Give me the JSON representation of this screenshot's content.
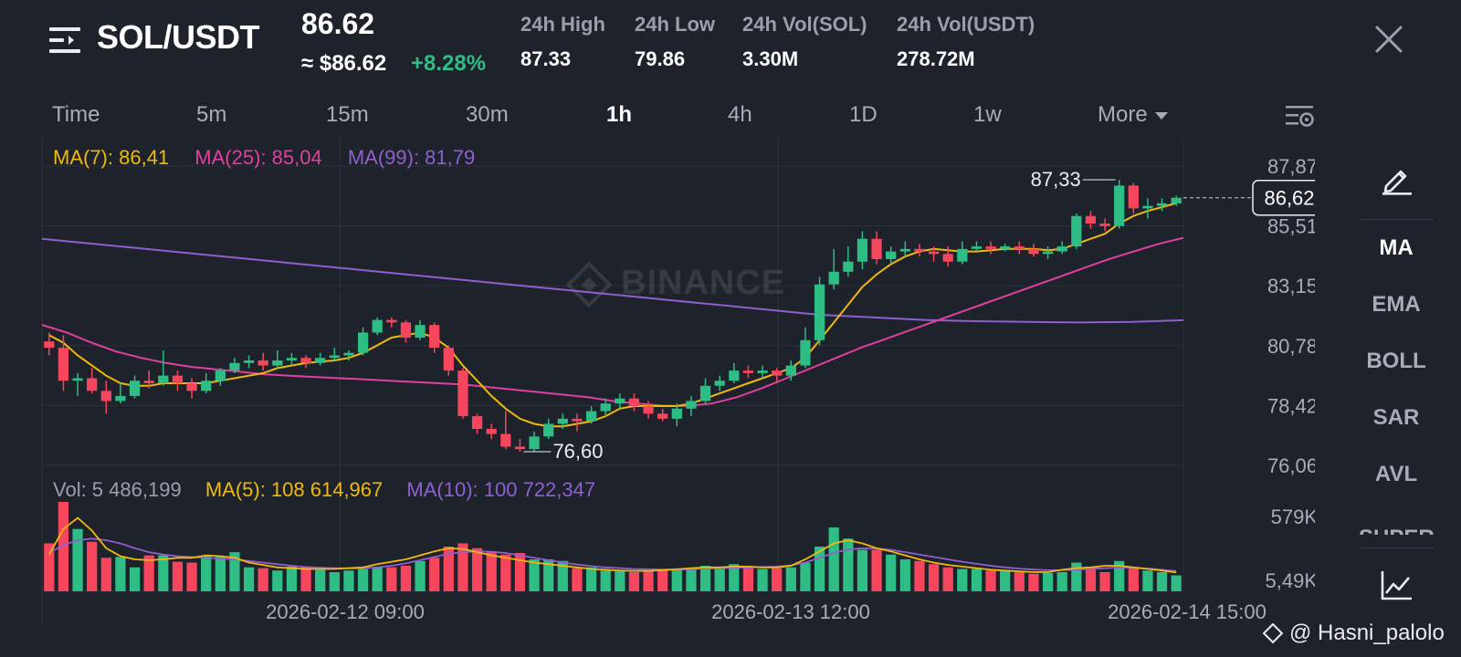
{
  "header": {
    "pair": "SOL/USDT",
    "last_price": "86.62",
    "approx_price": "≈ $86.62",
    "change_pct": "+8.28%",
    "stats": [
      {
        "label": "24h High",
        "value": "87.33"
      },
      {
        "label": "24h Low",
        "value": "79.86"
      },
      {
        "label": "24h Vol(SOL)",
        "value": "3.30M"
      },
      {
        "label": "24h Vol(USDT)",
        "value": "278.72M"
      }
    ]
  },
  "timeframes": [
    "Time",
    "5m",
    "15m",
    "30m",
    "1h",
    "4h",
    "1D",
    "1w",
    "More"
  ],
  "active_timeframe": "1h",
  "ma_legend": {
    "ma7": "MA(7): 86,41",
    "ma25": "MA(25): 85,04",
    "ma99": "MA(99): 81,79"
  },
  "vol_legend": {
    "vol": "Vol: 5 486,199",
    "ma5": "MA(5): 108 614,967",
    "ma10": "MA(10): 100 722,347"
  },
  "watermark_logo": "BINANCE",
  "sidebar": [
    "MA",
    "EMA",
    "BOLL",
    "SAR",
    "AVL",
    "SUPER"
  ],
  "sidebar_active": "MA",
  "footer_credit": "@ Hasni_palolo",
  "colors": {
    "up": "#2ebd85",
    "down": "#f6465d",
    "ma7": "#f0b90b",
    "ma25": "#e040a0",
    "ma99": "#8f5fd0",
    "bg": "#1e222b"
  },
  "chart_data": {
    "type": "candlestick",
    "price_axis_ticks": [
      "87,87",
      "85,51",
      "83,15",
      "80,78",
      "78,42",
      "76,06"
    ],
    "price_range": [
      76.06,
      87.87
    ],
    "volume_axis_ticks": [
      "579K",
      "5,49K"
    ],
    "x_tick_labels": [
      "2026-02-12 09:00",
      "2026-02-13 12:00",
      "2026-02-14 15:00"
    ],
    "high_label": "87,33",
    "low_label": "76,60",
    "current_price_label": "86,62",
    "candles": [
      [
        80.95,
        80.7,
        81.3,
        80.4
      ],
      [
        80.7,
        79.4,
        81.2,
        79.0
      ],
      [
        79.4,
        79.5,
        79.7,
        78.8
      ],
      [
        79.5,
        79.0,
        79.9,
        78.9
      ],
      [
        79.0,
        78.6,
        79.4,
        78.1
      ],
      [
        78.6,
        78.8,
        79.3,
        78.5
      ],
      [
        78.8,
        79.4,
        79.6,
        78.7
      ],
      [
        79.4,
        79.3,
        79.8,
        79.1
      ],
      [
        79.3,
        79.6,
        80.6,
        79.2
      ],
      [
        79.6,
        79.3,
        79.8,
        79.0
      ],
      [
        79.3,
        79.0,
        79.5,
        78.7
      ],
      [
        79.0,
        79.4,
        79.7,
        78.9
      ],
      [
        79.4,
        79.8,
        79.9,
        79.2
      ],
      [
        79.8,
        80.1,
        80.3,
        79.7
      ],
      [
        80.1,
        80.2,
        80.4,
        79.9
      ],
      [
        80.2,
        80.0,
        80.5,
        79.8
      ],
      [
        80.0,
        80.2,
        80.6,
        79.9
      ],
      [
        80.2,
        80.3,
        80.5,
        80.0
      ],
      [
        80.3,
        80.1,
        80.4,
        79.9
      ],
      [
        80.1,
        80.3,
        80.5,
        80.0
      ],
      [
        80.3,
        80.4,
        80.7,
        80.2
      ],
      [
        80.4,
        80.5,
        80.6,
        80.2
      ],
      [
        80.5,
        81.3,
        81.5,
        80.4
      ],
      [
        81.3,
        81.8,
        81.9,
        81.2
      ],
      [
        81.8,
        81.7,
        81.9,
        81.5
      ],
      [
        81.7,
        81.1,
        81.8,
        80.9
      ],
      [
        81.1,
        81.6,
        81.8,
        81.0
      ],
      [
        81.6,
        80.7,
        81.7,
        80.5
      ],
      [
        80.7,
        79.8,
        80.8,
        79.6
      ],
      [
        79.8,
        78.0,
        79.9,
        77.9
      ],
      [
        78.0,
        77.5,
        78.1,
        77.3
      ],
      [
        77.5,
        77.3,
        77.7,
        77.1
      ],
      [
        77.3,
        76.8,
        78.2,
        76.7
      ],
      [
        76.8,
        76.7,
        77.1,
        76.6
      ],
      [
        76.7,
        77.2,
        77.4,
        76.6
      ],
      [
        77.2,
        77.7,
        77.9,
        77.1
      ],
      [
        77.7,
        77.9,
        78.1,
        77.5
      ],
      [
        77.9,
        77.8,
        78.1,
        77.4
      ],
      [
        77.8,
        78.2,
        78.4,
        77.7
      ],
      [
        78.2,
        78.5,
        78.7,
        78.0
      ],
      [
        78.5,
        78.7,
        78.9,
        78.3
      ],
      [
        78.7,
        78.4,
        78.9,
        78.2
      ],
      [
        78.4,
        78.1,
        78.6,
        77.9
      ],
      [
        78.1,
        77.9,
        78.3,
        77.8
      ],
      [
        77.9,
        78.3,
        78.5,
        77.6
      ],
      [
        78.3,
        78.6,
        78.8,
        78.0
      ],
      [
        78.6,
        79.2,
        79.5,
        78.5
      ],
      [
        79.2,
        79.4,
        79.6,
        79.0
      ],
      [
        79.4,
        79.8,
        80.1,
        79.3
      ],
      [
        79.8,
        79.7,
        80.0,
        79.5
      ],
      [
        79.7,
        79.8,
        80.0,
        79.5
      ],
      [
        79.8,
        79.6,
        79.9,
        79.3
      ],
      [
        79.6,
        80.0,
        80.2,
        79.4
      ],
      [
        80.0,
        81.0,
        81.5,
        79.9
      ],
      [
        81.0,
        83.2,
        83.5,
        80.8
      ],
      [
        83.2,
        83.7,
        84.6,
        83.0
      ],
      [
        83.7,
        84.1,
        84.7,
        83.5
      ],
      [
        84.1,
        85.0,
        85.3,
        83.8
      ],
      [
        85.0,
        84.2,
        85.3,
        84.0
      ],
      [
        84.2,
        84.5,
        84.7,
        84.0
      ],
      [
        84.5,
        84.6,
        84.9,
        84.3
      ],
      [
        84.6,
        84.5,
        84.8,
        84.3
      ],
      [
        84.5,
        84.4,
        84.7,
        84.1
      ],
      [
        84.4,
        84.1,
        84.7,
        83.9
      ],
      [
        84.1,
        84.6,
        84.9,
        84.0
      ],
      [
        84.6,
        84.7,
        84.9,
        84.5
      ],
      [
        84.7,
        84.6,
        84.9,
        84.4
      ],
      [
        84.6,
        84.7,
        84.8,
        84.5
      ],
      [
        84.7,
        84.6,
        84.9,
        84.4
      ],
      [
        84.6,
        84.4,
        84.8,
        84.3
      ],
      [
        84.4,
        84.5,
        84.7,
        84.2
      ],
      [
        84.5,
        84.7,
        84.9,
        84.4
      ],
      [
        84.7,
        85.9,
        86.0,
        84.6
      ],
      [
        85.9,
        85.6,
        86.1,
        85.4
      ],
      [
        85.6,
        85.5,
        85.8,
        85.3
      ],
      [
        85.5,
        87.1,
        87.33,
        85.4
      ],
      [
        87.1,
        86.2,
        87.2,
        86.0
      ],
      [
        86.2,
        86.3,
        86.6,
        85.8
      ],
      [
        86.3,
        86.4,
        86.6,
        86.1
      ],
      [
        86.4,
        86.62,
        86.7,
        86.3
      ]
    ],
    "volumes": [
      300,
      560,
      390,
      310,
      210,
      215,
      150,
      225,
      225,
      185,
      180,
      220,
      220,
      245,
      150,
      145,
      130,
      155,
      150,
      135,
      120,
      130,
      140,
      150,
      150,
      160,
      190,
      210,
      280,
      300,
      270,
      250,
      230,
      240,
      200,
      200,
      190,
      145,
      150,
      130,
      125,
      120,
      125,
      130,
      135,
      145,
      160,
      140,
      170,
      150,
      140,
      145,
      150,
      180,
      280,
      400,
      330,
      260,
      260,
      230,
      200,
      190,
      170,
      150,
      140,
      140,
      130,
      130,
      120,
      110,
      115,
      120,
      180,
      150,
      120,
      190,
      150,
      130,
      120,
      100
    ],
    "ma7": [
      81.2,
      80.9,
      80.4,
      80.0,
      79.6,
      79.3,
      79.2,
      79.2,
      79.3,
      79.3,
      79.3,
      79.3,
      79.4,
      79.5,
      79.6,
      79.7,
      79.9,
      80.0,
      80.1,
      80.15,
      80.2,
      80.3,
      80.5,
      80.8,
      81.1,
      81.2,
      81.3,
      81.1,
      80.7,
      80.0,
      79.4,
      78.8,
      78.3,
      77.9,
      77.7,
      77.6,
      77.6,
      77.7,
      77.8,
      78.0,
      78.3,
      78.4,
      78.4,
      78.4,
      78.4,
      78.5,
      78.7,
      78.9,
      79.1,
      79.3,
      79.5,
      79.7,
      79.9,
      80.3,
      81.0,
      81.7,
      82.4,
      83.1,
      83.6,
      84.0,
      84.3,
      84.5,
      84.6,
      84.55,
      84.5,
      84.5,
      84.55,
      84.6,
      84.6,
      84.6,
      84.55,
      84.6,
      84.8,
      85.0,
      85.2,
      85.6,
      85.9,
      86.1,
      86.25,
      86.41
    ],
    "ma25_start": 1,
    "ma25": [
      81.6,
      81.3,
      80.9,
      80.55,
      80.3,
      80.1,
      79.95,
      79.85,
      79.75,
      79.65,
      79.6,
      79.55,
      79.5,
      79.45,
      79.4,
      79.35,
      79.3,
      79.25,
      79.15,
      79.05,
      78.95,
      78.85,
      78.75,
      78.6,
      78.5,
      78.42,
      78.4,
      78.5,
      78.75,
      79.1,
      79.5,
      79.9,
      80.3,
      80.7,
      81.05,
      81.4,
      81.75,
      82.1,
      82.45,
      82.8,
      83.15,
      83.5,
      83.85,
      84.2,
      84.5,
      84.8,
      85.04
    ],
    "ma99": [
      85.0,
      84.8,
      84.6,
      84.4,
      84.2,
      84.0,
      83.8,
      83.6,
      83.4,
      83.2,
      83.0,
      82.8,
      82.6,
      82.4,
      82.2,
      82.0,
      81.9,
      81.8,
      81.75,
      81.72,
      81.7,
      81.72,
      81.79
    ],
    "vol_ma5": [
      230,
      390,
      460,
      380,
      270,
      220,
      200,
      195,
      200,
      210,
      210,
      225,
      220,
      210,
      180,
      165,
      150,
      145,
      140,
      140,
      140,
      145,
      150,
      170,
      185,
      200,
      225,
      250,
      270,
      265,
      245,
      225,
      210,
      195,
      180,
      170,
      160,
      150,
      140,
      135,
      130,
      128,
      128,
      132,
      138,
      145,
      150,
      150,
      155,
      155,
      150,
      150,
      160,
      200,
      250,
      300,
      320,
      300,
      270,
      250,
      225,
      200,
      180,
      165,
      155,
      145,
      135,
      130,
      125,
      120,
      120,
      135,
      145,
      150,
      160,
      160,
      150,
      140,
      130,
      118
    ],
    "vol_ma10": [
      240,
      290,
      320,
      330,
      320,
      300,
      270,
      245,
      230,
      220,
      215,
      210,
      205,
      200,
      190,
      180,
      170,
      160,
      152,
      148,
      145,
      144,
      145,
      150,
      160,
      175,
      195,
      215,
      235,
      245,
      250,
      248,
      240,
      225,
      210,
      195,
      180,
      168,
      158,
      150,
      145,
      140,
      138,
      136,
      136,
      138,
      142,
      145,
      148,
      150,
      152,
      155,
      162,
      180,
      210,
      240,
      262,
      270,
      268,
      260,
      245,
      230,
      215,
      200,
      185,
      172,
      160,
      150,
      142,
      136,
      132,
      132,
      135,
      140,
      145,
      150,
      148,
      142,
      135,
      126
    ]
  }
}
